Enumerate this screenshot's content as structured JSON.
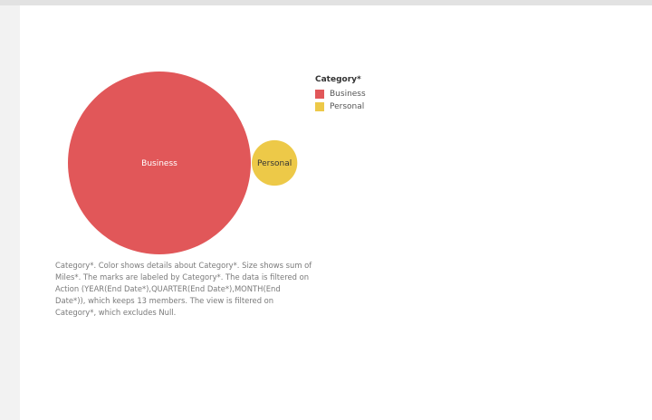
{
  "colors": {
    "business": "#e15759",
    "personal": "#edc948"
  },
  "legend": {
    "title": "Category*",
    "items": [
      {
        "label": "Business",
        "color": "#e15759"
      },
      {
        "label": "Personal",
        "color": "#edc948"
      }
    ]
  },
  "caption": "Category*. Color shows details about Category*. Size shows sum of Miles*. The marks are labeled by Category*. The data is filtered on Action (YEAR(End Date*),QUARTER(End Date*),MONTH(End Date*)), which keeps 13 members. The view is filtered on Category*, which excludes Null.",
  "chart_data": {
    "type": "bubble",
    "title": "",
    "size_measure": "sum of Miles*",
    "color_dimension": "Category*",
    "label_dimension": "Category*",
    "series": [
      {
        "name": "Business",
        "value": 100,
        "color": "#e15759"
      },
      {
        "name": "Personal",
        "value": 6.2,
        "color": "#edc948"
      }
    ],
    "legend_placement": "right"
  }
}
